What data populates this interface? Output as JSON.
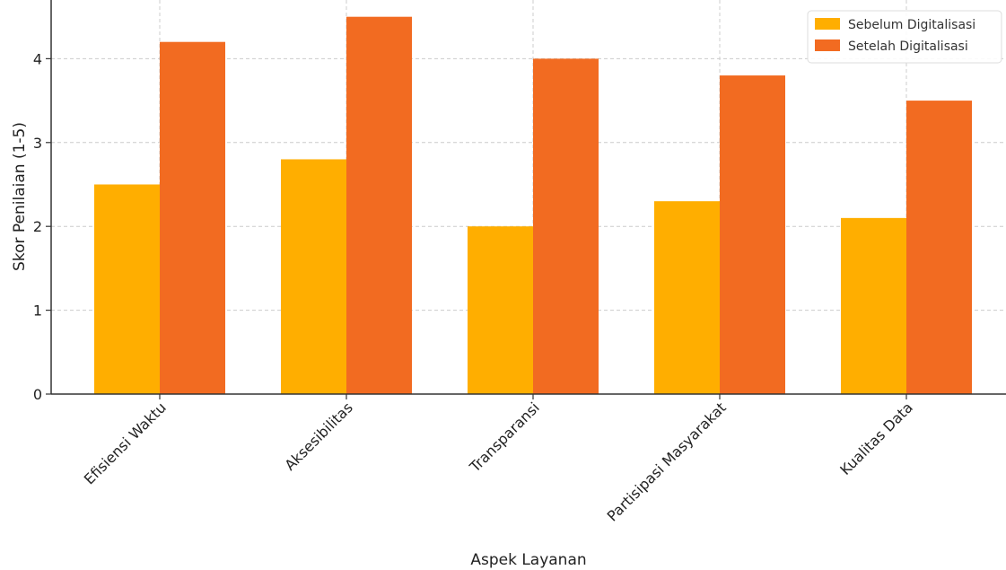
{
  "chart_data": {
    "type": "bar",
    "title": "",
    "xlabel": "Aspek Layanan",
    "ylabel": "Skor Penilaian (1-5)",
    "ylim": [
      0,
      4.7
    ],
    "yticks": [
      0,
      1,
      2,
      3,
      4
    ],
    "grid": true,
    "legend_position": "top-right",
    "categories": [
      "Efisiensi Waktu",
      "Aksesibilitas",
      "Transparansi",
      "Partisipasi Masyarakat",
      "Kualitas Data"
    ],
    "series": [
      {
        "name": "Sebelum Digitalisasi",
        "color": "#FFAE00",
        "values": [
          2.5,
          2.8,
          2.0,
          2.3,
          2.1
        ]
      },
      {
        "name": "Setelah Digitalisasi",
        "color": "#F26B21",
        "values": [
          4.2,
          4.5,
          4.0,
          3.8,
          3.5
        ]
      }
    ]
  }
}
